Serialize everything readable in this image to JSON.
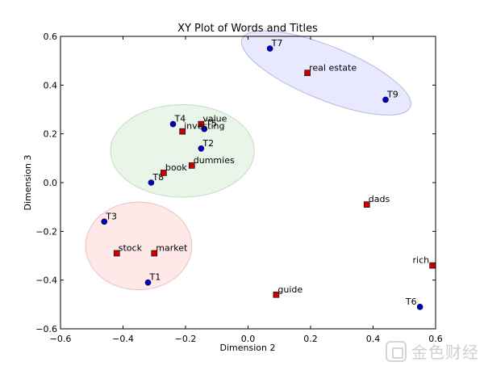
{
  "chart_data": {
    "type": "scatter",
    "title": "XY Plot of Words and Titles",
    "xlabel": "Dimension 2",
    "ylabel": "Dimension 3",
    "xlim": [
      -0.6,
      0.6
    ],
    "ylim": [
      -0.6,
      0.6
    ],
    "x_ticks": [
      -0.6,
      -0.4,
      -0.2,
      0.0,
      0.2,
      0.4,
      0.6
    ],
    "y_ticks": [
      -0.6,
      -0.4,
      -0.2,
      0.0,
      0.2,
      0.4,
      0.6
    ],
    "x_tick_labels": [
      "−0.6",
      "−0.4",
      "−0.2",
      "0.0",
      "0.2",
      "0.4",
      "0.6"
    ],
    "y_tick_labels": [
      "−0.6",
      "−0.4",
      "−0.2",
      "0.0",
      "0.2",
      "0.4",
      "0.6"
    ],
    "grid": false,
    "series": [
      {
        "marker": "circle",
        "color": "#0000cc",
        "points": [
          {
            "label": "T1",
            "x": -0.32,
            "y": -0.41
          },
          {
            "label": "T2",
            "x": -0.15,
            "y": 0.14
          },
          {
            "label": "T3",
            "x": -0.46,
            "y": -0.16
          },
          {
            "label": "T4",
            "x": -0.24,
            "y": 0.24
          },
          {
            "label": "T5",
            "x": -0.14,
            "y": 0.22
          },
          {
            "label": "T6",
            "x": 0.55,
            "y": -0.51
          },
          {
            "label": "T7",
            "x": 0.07,
            "y": 0.55
          },
          {
            "label": "T8",
            "x": -0.31,
            "y": 0.0
          },
          {
            "label": "T9",
            "x": 0.44,
            "y": 0.34
          }
        ]
      },
      {
        "marker": "square",
        "color": "#cc0000",
        "points": [
          {
            "label": "value",
            "x": -0.15,
            "y": 0.24
          },
          {
            "label": "investing",
            "x": -0.21,
            "y": 0.21
          },
          {
            "label": "dummies",
            "x": -0.18,
            "y": 0.07
          },
          {
            "label": "book",
            "x": -0.27,
            "y": 0.04
          },
          {
            "label": "real estate",
            "x": 0.19,
            "y": 0.45
          },
          {
            "label": "dads",
            "x": 0.38,
            "y": -0.09
          },
          {
            "label": "stock",
            "x": -0.42,
            "y": -0.29
          },
          {
            "label": "market",
            "x": -0.3,
            "y": -0.29
          },
          {
            "label": "rich",
            "x": 0.59,
            "y": -0.34
          },
          {
            "label": "guide",
            "x": 0.09,
            "y": -0.46
          }
        ]
      }
    ],
    "clusters": [
      {
        "color": "#e0e0ff",
        "stroke": "#b8b8e0",
        "cx": 0.25,
        "cy": 0.45,
        "rx": 0.29,
        "ry": 0.11,
        "rotate_deg": 22
      },
      {
        "color": "#e2f2e2",
        "stroke": "#c2dcc2",
        "cx": -0.21,
        "cy": 0.13,
        "rx": 0.23,
        "ry": 0.19,
        "rotate_deg": 0
      },
      {
        "color": "#fde0e0",
        "stroke": "#e8c2c2",
        "cx": -0.35,
        "cy": -0.26,
        "rx": 0.17,
        "ry": 0.18,
        "rotate_deg": 0
      }
    ]
  },
  "watermark": {
    "text": "金色财经"
  }
}
